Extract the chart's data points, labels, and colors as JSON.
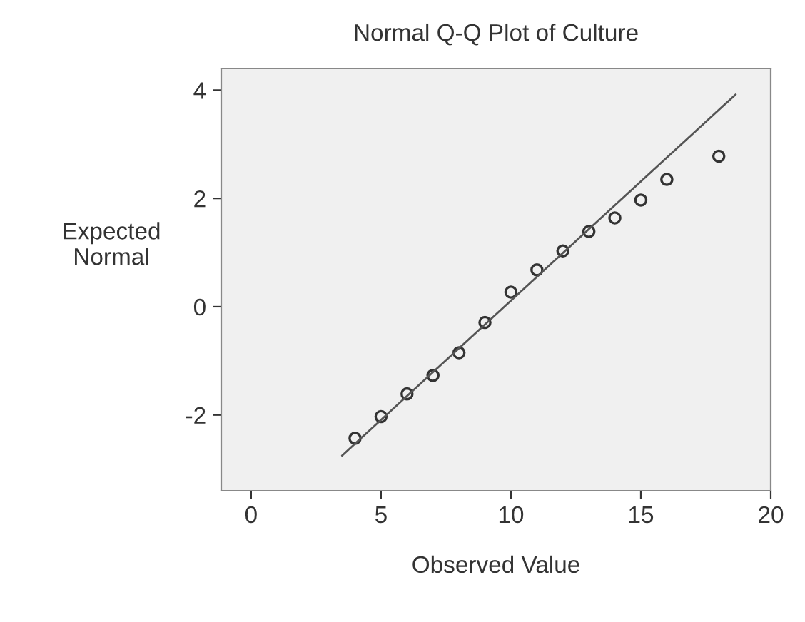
{
  "chart_data": {
    "type": "scatter",
    "title": "Normal Q-Q Plot of Culture",
    "xlabel": "Observed Value",
    "ylabel": "Expected\nNormal",
    "x": [
      4,
      5,
      6,
      7,
      8,
      9,
      10,
      11,
      12,
      13,
      14,
      15,
      16,
      18
    ],
    "series": [
      {
        "color": "#333333",
        "marker": "circle",
        "values": [
          -2.43,
          -2.03,
          -1.61,
          -1.27,
          -0.85,
          -0.29,
          0.27,
          0.68,
          1.03,
          1.39,
          1.64,
          1.97,
          2.35,
          2.78
        ]
      },
      {
        "type": "line",
        "color": "#555555",
        "marker": "none",
        "line_style": "solid",
        "x": [
          3.5,
          18.65
        ],
        "values": [
          -2.75,
          3.92
        ]
      }
    ],
    "xlim": [
      -1.15,
      20
    ],
    "ylim": [
      -3.4,
      4.4
    ],
    "xticks": [
      0,
      5,
      10,
      15,
      20
    ],
    "yticks": [
      -2,
      0,
      2,
      4
    ],
    "grid": false,
    "legend": false
  }
}
